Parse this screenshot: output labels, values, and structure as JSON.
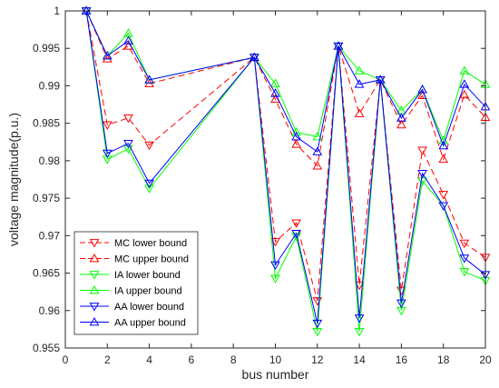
{
  "chart_data": {
    "type": "line",
    "xlabel": "bus number",
    "ylabel": "voltage magnitude(p.u.)",
    "xlim": [
      0,
      20
    ],
    "ylim": [
      0.955,
      1.0
    ],
    "xticks": [
      0,
      2,
      4,
      6,
      8,
      10,
      12,
      14,
      16,
      18,
      20
    ],
    "xtick_labels": [
      "0",
      "2",
      "4",
      "6",
      "8",
      "10",
      "12",
      "14",
      "16",
      "18",
      "20"
    ],
    "yticks": [
      0.955,
      0.96,
      0.965,
      0.97,
      0.975,
      0.98,
      0.985,
      0.99,
      0.995,
      1.0
    ],
    "ytick_labels": [
      "0.955",
      "0.96",
      "0.965",
      "0.97",
      "0.975",
      "0.98",
      "0.985",
      "0.99",
      "0.995",
      "1"
    ],
    "grid": false,
    "legend_position": "bottom-left",
    "x": [
      1,
      2,
      3,
      4,
      9,
      10,
      11,
      12,
      13,
      14,
      15,
      16,
      17,
      18,
      19,
      20
    ],
    "series": [
      {
        "name": "MC lower bound",
        "color": "#ff0000",
        "dash": "dashed",
        "marker": "triangle-down",
        "values": [
          1.0,
          0.9848,
          0.9857,
          0.9821,
          0.9938,
          0.9692,
          0.9717,
          0.9613,
          0.9953,
          0.9634,
          0.9908,
          0.9627,
          0.9814,
          0.9755,
          0.969,
          0.9671
        ]
      },
      {
        "name": "MC upper bound",
        "color": "#ff0000",
        "dash": "dashed",
        "marker": "triangle-up",
        "values": [
          1.0,
          0.9936,
          0.9953,
          0.9903,
          0.9938,
          0.9882,
          0.9822,
          0.9793,
          0.9953,
          0.9863,
          0.9908,
          0.9848,
          0.9887,
          0.9802,
          0.9888,
          0.9858
        ]
      },
      {
        "name": "IA lower bound",
        "color": "#00ff00",
        "dash": "solid",
        "marker": "triangle-down",
        "values": [
          1.0,
          0.9802,
          0.9816,
          0.9763,
          0.9938,
          0.9643,
          0.9699,
          0.9572,
          0.9953,
          0.9572,
          0.9908,
          0.96,
          0.9773,
          0.974,
          0.9652,
          0.964
        ]
      },
      {
        "name": "IA upper bound",
        "color": "#00ff00",
        "dash": "solid",
        "marker": "triangle-up",
        "values": [
          1.0,
          0.994,
          0.997,
          0.9908,
          0.9938,
          0.9903,
          0.9838,
          0.9832,
          0.9953,
          0.992,
          0.9908,
          0.9867,
          0.9895,
          0.9827,
          0.992,
          0.9902
        ]
      },
      {
        "name": "AA lower bound",
        "color": "#0000ff",
        "dash": "solid",
        "marker": "triangle-down",
        "values": [
          1.0,
          0.981,
          0.9823,
          0.977,
          0.9938,
          0.9661,
          0.9703,
          0.9583,
          0.9953,
          0.959,
          0.9908,
          0.961,
          0.9783,
          0.974,
          0.967,
          0.9648
        ]
      },
      {
        "name": "AA upper bound",
        "color": "#0000ff",
        "dash": "solid",
        "marker": "triangle-up",
        "values": [
          1.0,
          0.994,
          0.996,
          0.9908,
          0.9938,
          0.989,
          0.9832,
          0.9812,
          0.9953,
          0.9902,
          0.9908,
          0.9857,
          0.9895,
          0.982,
          0.9902,
          0.9872
        ]
      }
    ]
  }
}
